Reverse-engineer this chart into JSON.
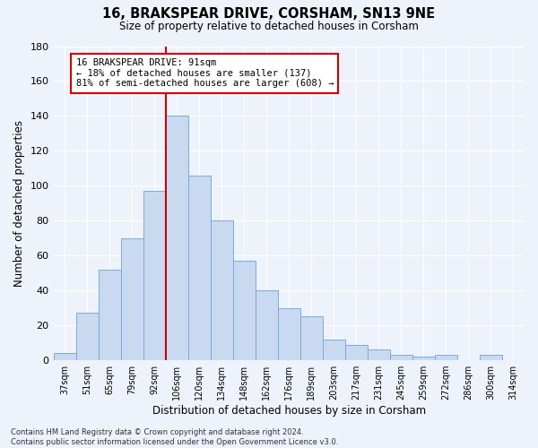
{
  "title": "16, BRAKSPEAR DRIVE, CORSHAM, SN13 9NE",
  "subtitle": "Size of property relative to detached houses in Corsham",
  "xlabel": "Distribution of detached houses by size in Corsham",
  "ylabel": "Number of detached properties",
  "footer_line1": "Contains HM Land Registry data © Crown copyright and database right 2024.",
  "footer_line2": "Contains public sector information licensed under the Open Government Licence v3.0.",
  "bar_labels": [
    "37sqm",
    "51sqm",
    "65sqm",
    "79sqm",
    "92sqm",
    "106sqm",
    "120sqm",
    "134sqm",
    "148sqm",
    "162sqm",
    "176sqm",
    "189sqm",
    "203sqm",
    "217sqm",
    "231sqm",
    "245sqm",
    "259sqm",
    "272sqm",
    "286sqm",
    "300sqm",
    "314sqm"
  ],
  "bar_values": [
    4,
    27,
    52,
    70,
    97,
    140,
    106,
    80,
    57,
    40,
    30,
    25,
    12,
    9,
    6,
    3,
    2,
    3,
    0,
    3,
    0
  ],
  "bar_color": "#c9d9f0",
  "bar_edgecolor": "#7aabda",
  "background_color": "#eef2fb",
  "grid_color": "#ffffff",
  "vline_index": 4.5,
  "vline_color": "#cc0000",
  "annotation_text": "16 BRAKSPEAR DRIVE: 91sqm\n← 18% of detached houses are smaller (137)\n81% of semi-detached houses are larger (608) →",
  "annotation_box_facecolor": "#ffffff",
  "annotation_box_edgecolor": "#cc0000",
  "ylim": [
    0,
    180
  ],
  "yticks": [
    0,
    20,
    40,
    60,
    80,
    100,
    120,
    140,
    160,
    180
  ]
}
